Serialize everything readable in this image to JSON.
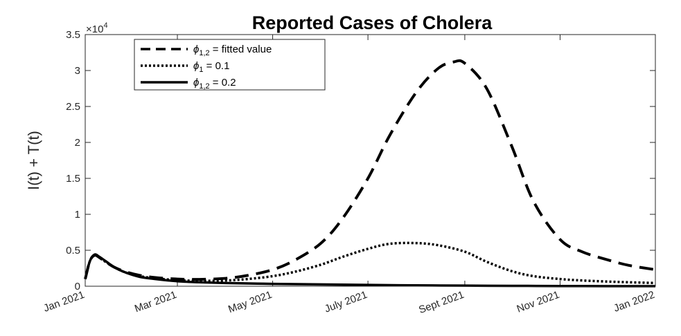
{
  "chart_data": {
    "type": "line",
    "title": "Reported Cases of Cholera",
    "xlabel": "",
    "ylabel": "I(t) + T(t)",
    "y_multiplier": "×10",
    "y_multiplier_exponent": "4",
    "ylim": [
      0,
      35000
    ],
    "xlim": [
      "2021-01-01",
      "2022-01-01"
    ],
    "yticks": [
      0,
      5000,
      10000,
      15000,
      20000,
      25000,
      30000,
      35000
    ],
    "ytick_labels": [
      "0",
      "0.5",
      "1",
      "1.5",
      "2",
      "2.5",
      "3",
      "3.5"
    ],
    "xticks": [
      "2021-01-01",
      "2021-03-01",
      "2021-05-01",
      "2021-07-01",
      "2021-09-01",
      "2021-11-01",
      "2022-01-01"
    ],
    "xtick_labels": [
      "Jan 2021",
      "Mar 2021",
      "May 2021",
      "July 2021",
      "Sept 2021",
      "Nov 2021",
      "Jan 2022"
    ],
    "grid": false,
    "legend_position": "top-left",
    "series": [
      {
        "name": "ϕ1,2 = fitted value",
        "style": "dashed",
        "x": [
          "2021-01-01",
          "2021-01-04",
          "2021-01-07",
          "2021-01-10",
          "2021-01-14",
          "2021-01-20",
          "2021-01-27",
          "2021-02-05",
          "2021-02-15",
          "2021-03-01",
          "2021-03-15",
          "2021-04-01",
          "2021-04-15",
          "2021-05-01",
          "2021-05-15",
          "2021-06-01",
          "2021-06-15",
          "2021-07-01",
          "2021-07-15",
          "2021-08-01",
          "2021-08-15",
          "2021-08-25",
          "2021-09-01",
          "2021-09-15",
          "2021-10-01",
          "2021-10-15",
          "2021-11-01",
          "2021-11-15",
          "2021-12-01",
          "2021-12-15",
          "2022-01-01"
        ],
        "y": [
          1000,
          3500,
          4300,
          4000,
          3400,
          2600,
          2000,
          1500,
          1200,
          1000,
          950,
          1100,
          1500,
          2300,
          3600,
          6000,
          9500,
          15000,
          21000,
          27000,
          30300,
          31200,
          31000,
          27500,
          19500,
          11800,
          6500,
          4800,
          3700,
          2900,
          2300
        ]
      },
      {
        "name": "ϕ1 = 0.1",
        "style": "dotted",
        "x": [
          "2021-01-01",
          "2021-01-04",
          "2021-01-07",
          "2021-01-10",
          "2021-01-14",
          "2021-01-20",
          "2021-01-27",
          "2021-02-05",
          "2021-02-15",
          "2021-03-01",
          "2021-03-15",
          "2021-04-01",
          "2021-04-15",
          "2021-05-01",
          "2021-05-15",
          "2021-06-01",
          "2021-06-15",
          "2021-07-01",
          "2021-07-15",
          "2021-08-01",
          "2021-08-15",
          "2021-09-01",
          "2021-09-15",
          "2021-10-01",
          "2021-10-15",
          "2021-11-01",
          "2021-11-15",
          "2021-12-01",
          "2021-12-15",
          "2022-01-01"
        ],
        "y": [
          1000,
          3500,
          4300,
          4000,
          3400,
          2600,
          1900,
          1400,
          1100,
          850,
          750,
          800,
          1000,
          1400,
          2000,
          3000,
          4100,
          5200,
          5900,
          6000,
          5700,
          4800,
          3400,
          2100,
          1400,
          1000,
          800,
          650,
          550,
          450
        ]
      },
      {
        "name": "ϕ1,2 = 0.2",
        "style": "solid",
        "x": [
          "2021-01-01",
          "2021-01-04",
          "2021-01-07",
          "2021-01-10",
          "2021-01-14",
          "2021-01-20",
          "2021-01-27",
          "2021-02-05",
          "2021-02-15",
          "2021-03-01",
          "2021-03-15",
          "2021-04-01",
          "2021-05-01",
          "2021-06-01",
          "2021-07-01",
          "2021-08-01",
          "2021-09-01",
          "2021-10-01",
          "2021-11-01",
          "2021-12-01",
          "2022-01-01"
        ],
        "y": [
          1000,
          3500,
          4400,
          4100,
          3500,
          2600,
          1900,
          1300,
          1000,
          700,
          550,
          450,
          330,
          250,
          180,
          120,
          80,
          50,
          30,
          15,
          10
        ]
      }
    ]
  }
}
